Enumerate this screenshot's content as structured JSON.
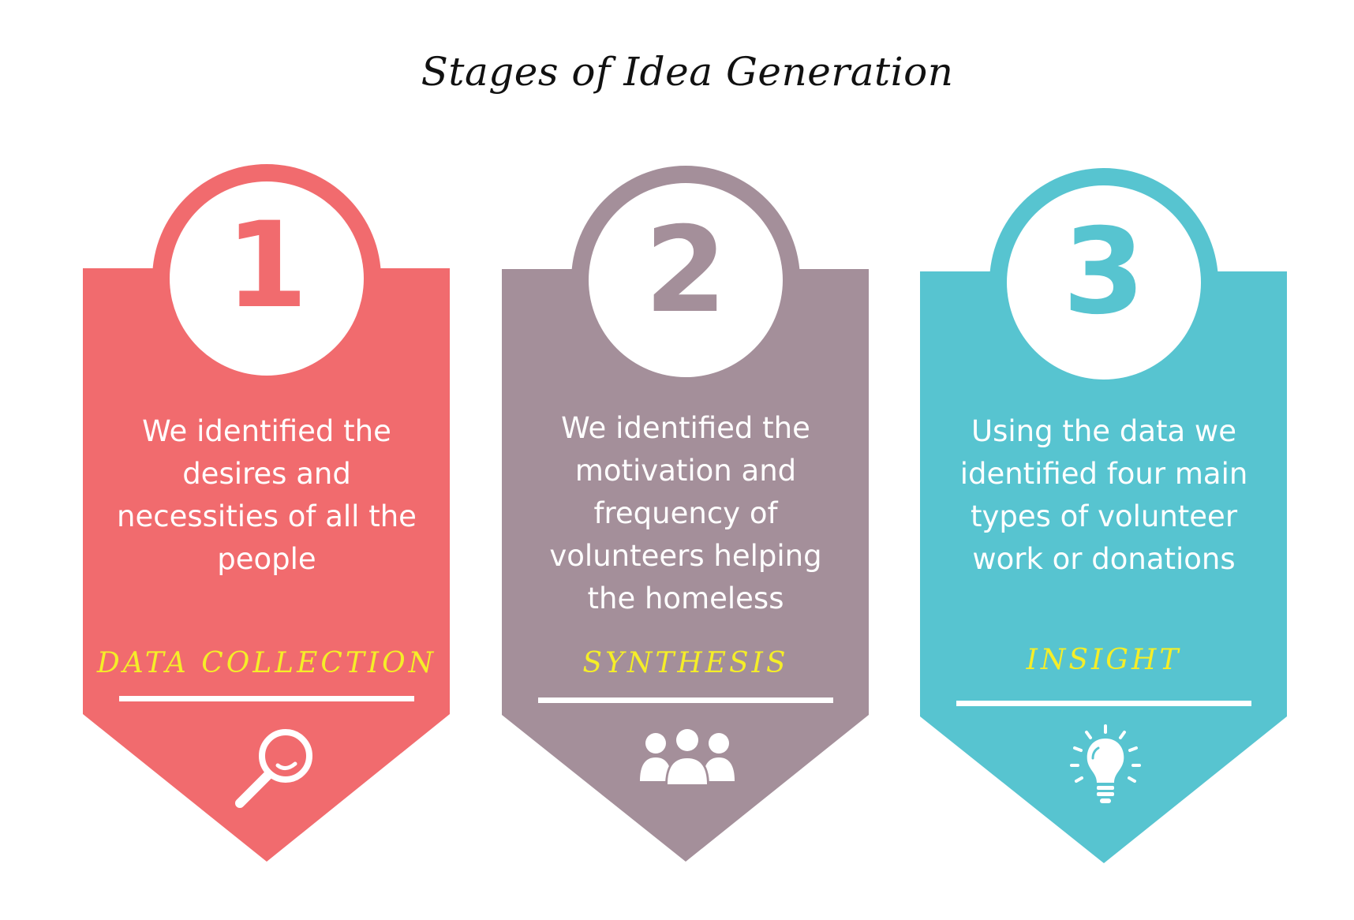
{
  "title": "Stages of Idea Generation",
  "stages": [
    {
      "number": "1",
      "description": "We identified the desires and necessities of all the people",
      "label": "Data collection",
      "icon": "magnifier-icon",
      "color": "#f16b6e"
    },
    {
      "number": "2",
      "description": "We identified the motivation and frequency of volunteers helping the homeless",
      "label": "Synthesis",
      "icon": "people-icon",
      "color": "#a48f9a"
    },
    {
      "number": "3",
      "description": "Using the data we identified four main types of volunteer work or donations",
      "label": "Insight",
      "icon": "lightbulb-icon",
      "color": "#57c4d0"
    }
  ],
  "label_color": "#f5ee28"
}
